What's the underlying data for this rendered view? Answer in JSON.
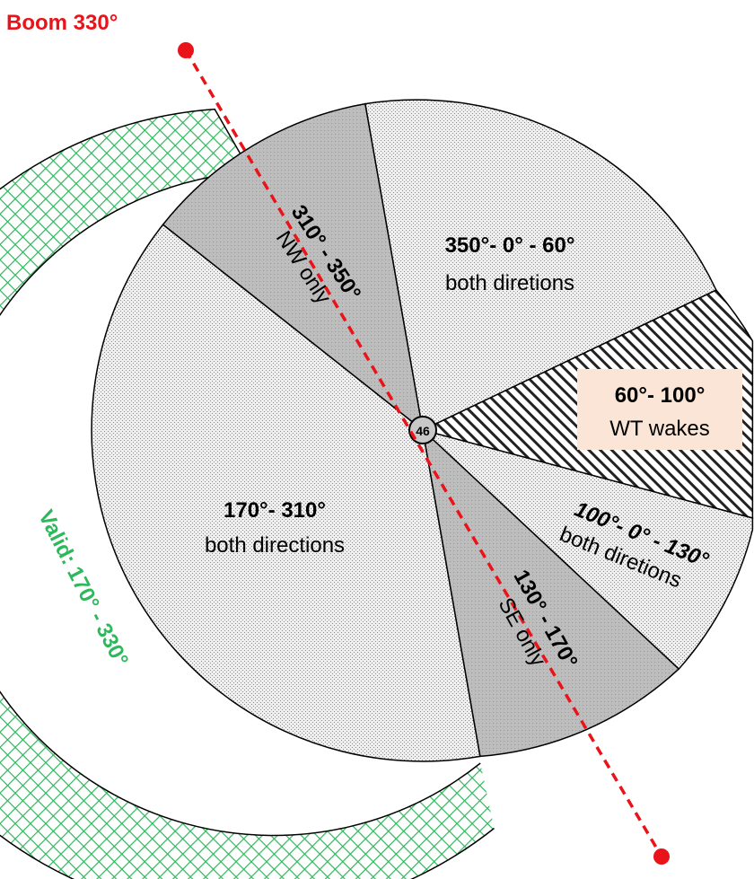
{
  "boom": {
    "label": "Boom 330°",
    "color": "#e8141a"
  },
  "center_label": "46",
  "valid": {
    "label": "Valid: 170° - 330°",
    "color": "#2eb85c"
  },
  "sectors": {
    "nw": {
      "range": "310° - 350°",
      "desc": "NW only",
      "fill": "#c0c0c0"
    },
    "n": {
      "range": "350°- 0° - 60°",
      "desc": "both diretions",
      "fill": "#e6e6e6"
    },
    "wt": {
      "range": "60°- 100°",
      "desc": "WT wakes",
      "box_color": "#fbe5d6"
    },
    "e": {
      "range": "100°- 0° - 130°",
      "desc": "both diretions",
      "fill": "#e6e6e6"
    },
    "se": {
      "range": "130° - 170°",
      "desc": "SE only",
      "fill": "#c0c0c0"
    },
    "w": {
      "range": "170°- 310°",
      "desc": "both directions",
      "fill": "#e6e6e6"
    }
  }
}
